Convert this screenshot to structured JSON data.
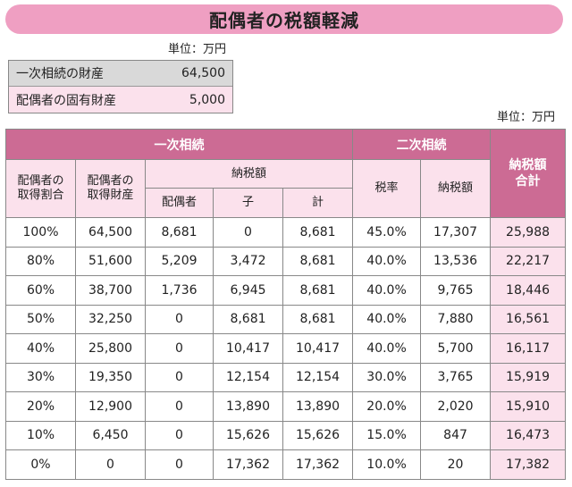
{
  "title": "配偶者の税額軽減",
  "unit_top": "単位：万円",
  "unit_table": "単位：万円",
  "summary": [
    {
      "label": "一次相続の財産",
      "value": "64,500"
    },
    {
      "label": "配偶者の固有財産",
      "value": "5,000"
    }
  ],
  "headers": {
    "first_inheritance": "一次相続",
    "second_inheritance": "二次相続",
    "total_tax": "納税額\n合計",
    "spouse_ratio": "配偶者の\n取得割合",
    "spouse_assets": "配偶者の\n取得財産",
    "tax_amount": "納税額",
    "spouse": "配偶者",
    "child": "子",
    "sum": "計",
    "tax_rate": "税率",
    "tax_amount2": "納税額"
  },
  "rows": [
    [
      "100%",
      "64,500",
      "8,681",
      "0",
      "8,681",
      "45.0%",
      "17,307",
      "25,988"
    ],
    [
      "80%",
      "51,600",
      "5,209",
      "3,472",
      "8,681",
      "40.0%",
      "13,536",
      "22,217"
    ],
    [
      "60%",
      "38,700",
      "1,736",
      "6,945",
      "8,681",
      "40.0%",
      "9,765",
      "18,446"
    ],
    [
      "50%",
      "32,250",
      "0",
      "8,681",
      "8,681",
      "40.0%",
      "7,880",
      "16,561"
    ],
    [
      "40%",
      "25,800",
      "0",
      "10,417",
      "10,417",
      "40.0%",
      "5,700",
      "16,117"
    ],
    [
      "30%",
      "19,350",
      "0",
      "12,154",
      "12,154",
      "30.0%",
      "3,765",
      "15,919"
    ],
    [
      "20%",
      "12,900",
      "0",
      "13,890",
      "13,890",
      "20.0%",
      "2,020",
      "15,910"
    ],
    [
      "10%",
      "6,450",
      "0",
      "15,626",
      "15,626",
      "15.0%",
      "847",
      "16,473"
    ],
    [
      "0%",
      "0",
      "0",
      "17,362",
      "17,362",
      "10.0%",
      "20",
      "17,382"
    ]
  ],
  "colors": {
    "title_bg": "#ef9fc2",
    "header_dark": "#cc6b94",
    "header_light": "#fbe1ec",
    "summary_gray": "#d9d9d9"
  }
}
